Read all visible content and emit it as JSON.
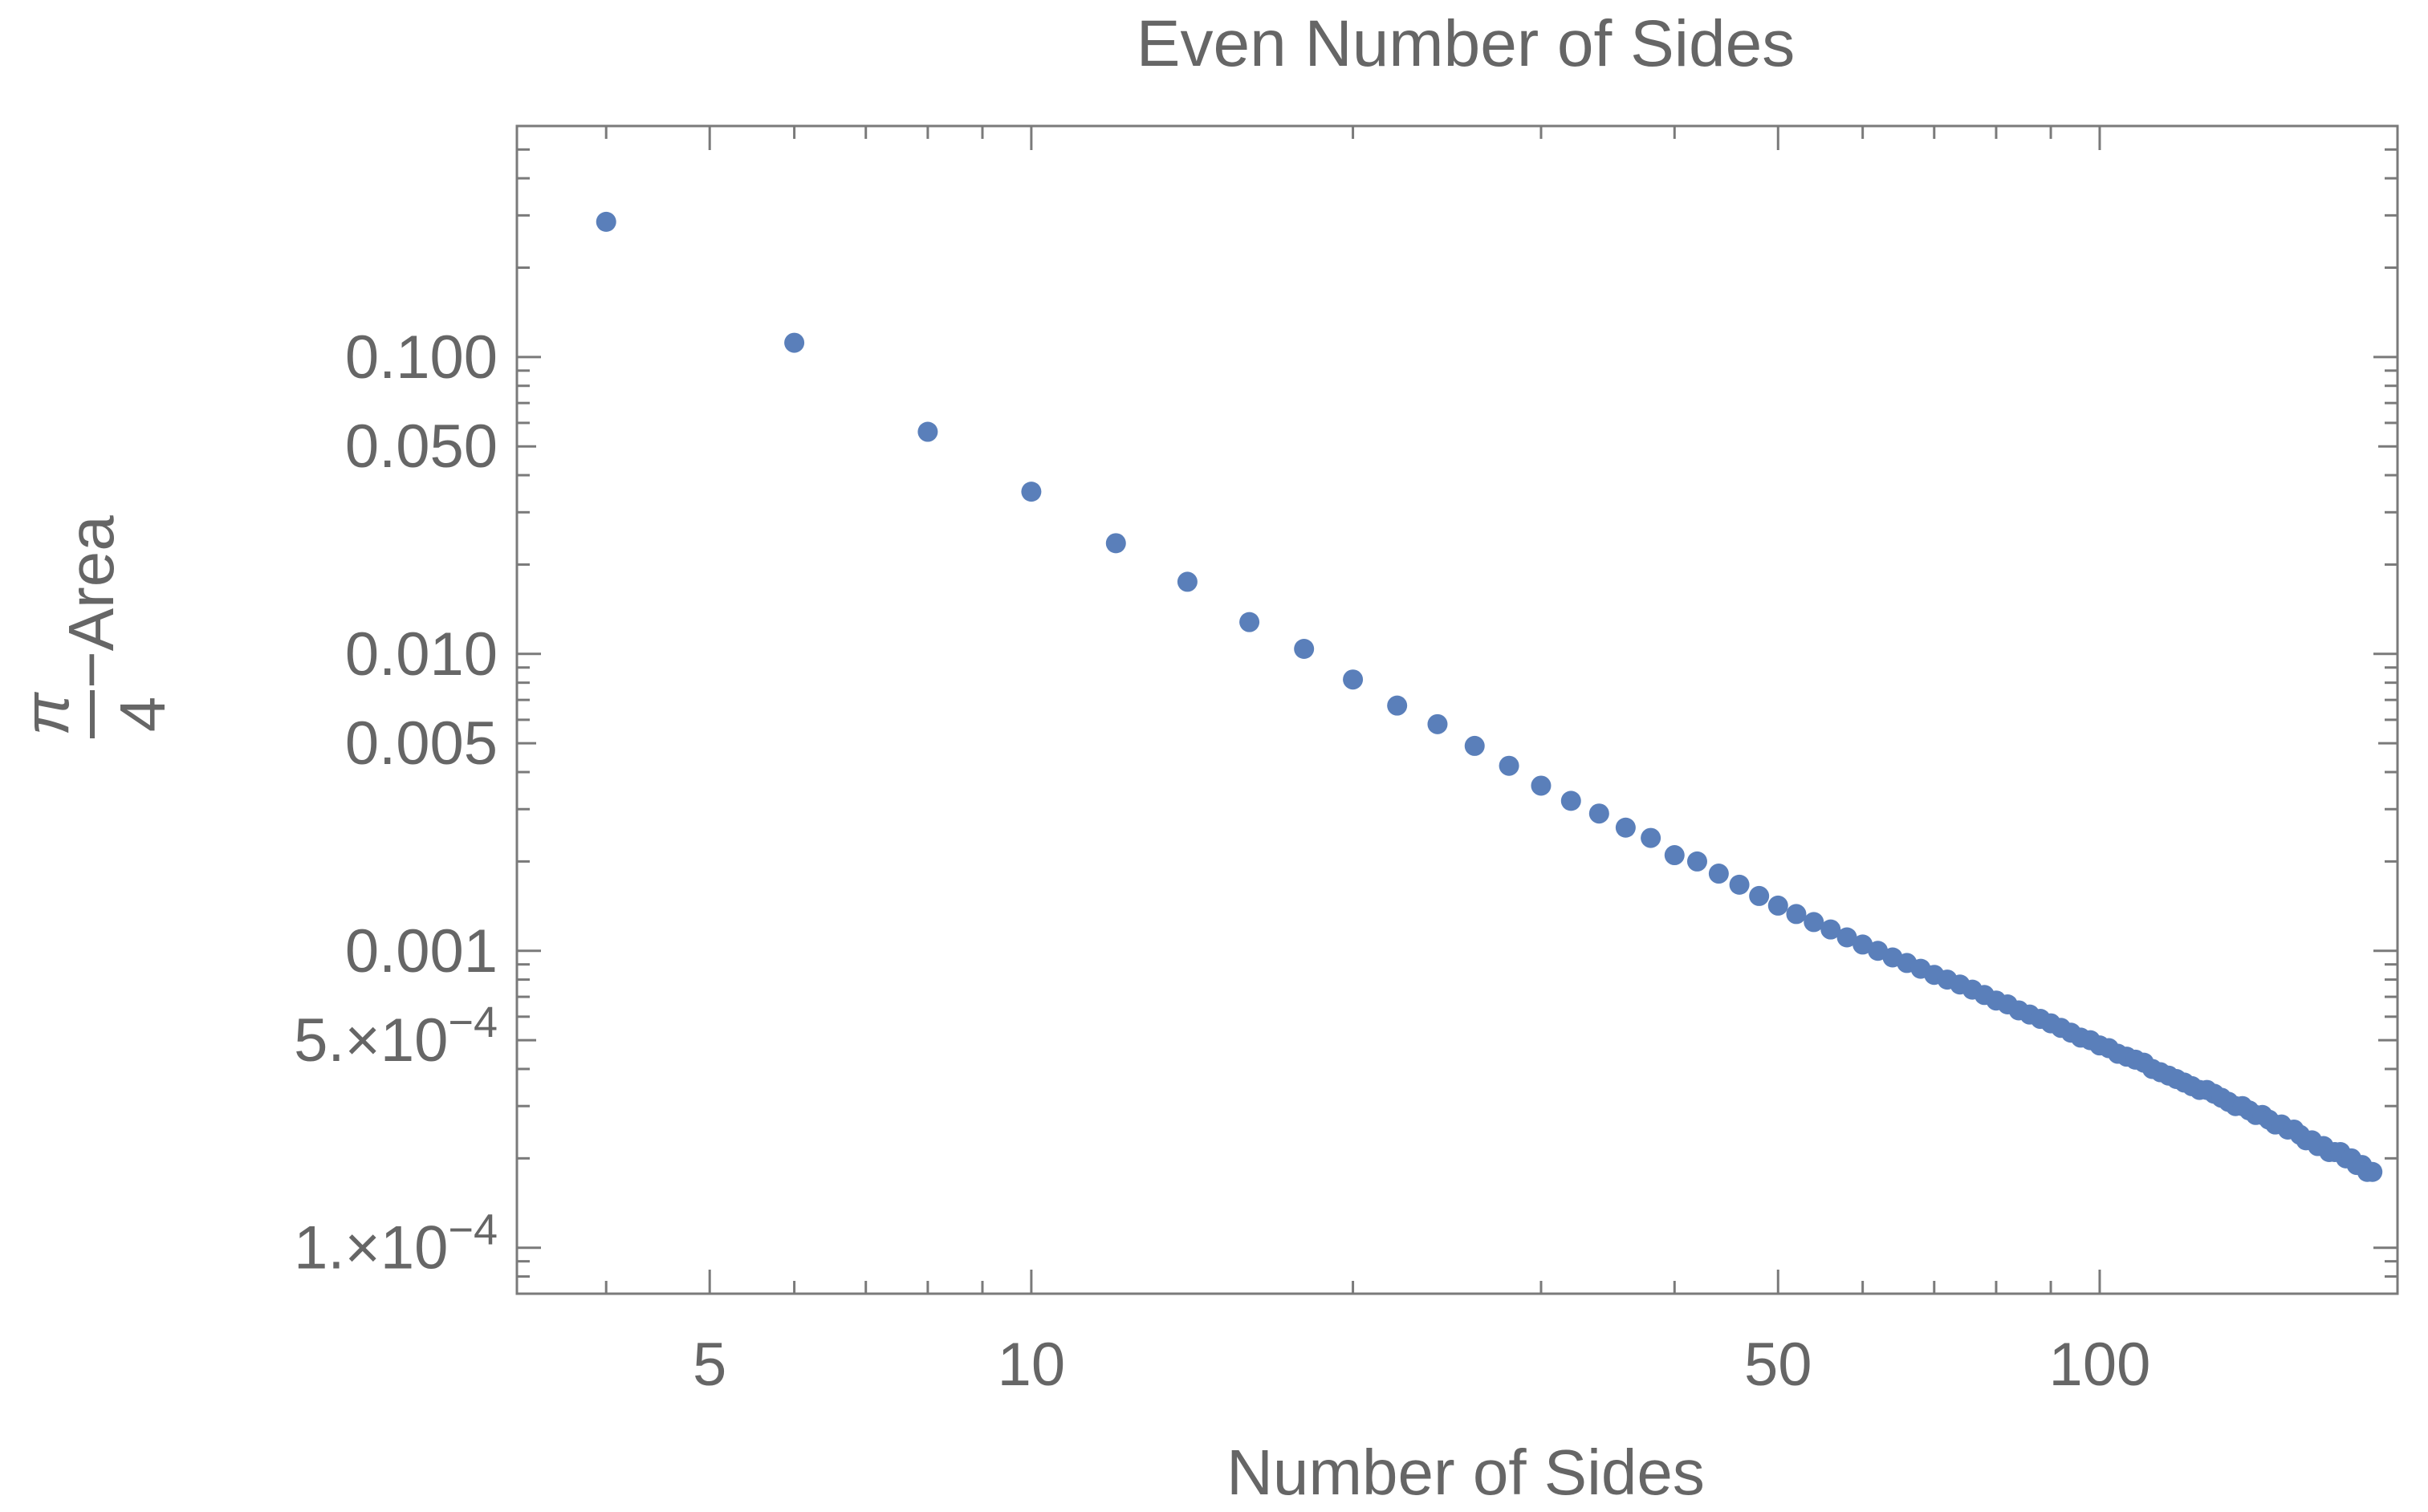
{
  "chart_data": {
    "type": "scatter",
    "title": "Even Number of Sides",
    "xlabel": "Number of Sides",
    "ylabel": {
      "numerator": "π",
      "denominator": "4",
      "suffix": "−Area"
    },
    "x_scale": "log",
    "y_scale": "log",
    "xlim": [
      3.3,
      190
    ],
    "ylim": [
      7e-05,
      0.6
    ],
    "grid": false,
    "legend": "none",
    "x_ticks": [
      {
        "value": 5,
        "label": "5"
      },
      {
        "value": 10,
        "label": "10"
      },
      {
        "value": 50,
        "label": "50"
      },
      {
        "value": 100,
        "label": "100"
      }
    ],
    "y_ticks": [
      {
        "value": 0.1,
        "label": "0.100"
      },
      {
        "value": 0.05,
        "label": "0.050"
      },
      {
        "value": 0.01,
        "label": "0.010"
      },
      {
        "value": 0.005,
        "label": "0.005"
      },
      {
        "value": 0.001,
        "label": "0.001"
      },
      {
        "value": 0.0005,
        "label": "5.×10",
        "exponent": "−4"
      },
      {
        "value": 0.0001,
        "label": "1.×10",
        "exponent": "−4"
      }
    ],
    "series": [
      {
        "color": "#5a7fba",
        "x": [
          4,
          6,
          8,
          10,
          12,
          14,
          16,
          18,
          20,
          22,
          24,
          26,
          28,
          30,
          32,
          34,
          36,
          38,
          40,
          42,
          44,
          46,
          48,
          50,
          52,
          54,
          56,
          58,
          60,
          62,
          64,
          66,
          68,
          70,
          72,
          74,
          76,
          78,
          80,
          82,
          84,
          86,
          88,
          90,
          92,
          94,
          96,
          98,
          100,
          102,
          104,
          106,
          108,
          110,
          112,
          114,
          116,
          118,
          120,
          122,
          124,
          126,
          128,
          130,
          132,
          134,
          136,
          138,
          140,
          142,
          144,
          146,
          148,
          150,
          152,
          154,
          156,
          158,
          160,
          162,
          164,
          166,
          168,
          170,
          172,
          174,
          176,
          178,
          180
        ],
        "y": [
          0.2854,
          0.1117,
          0.056,
          0.0352,
          0.0236,
          0.0175,
          0.0128,
          0.0104,
          0.0082,
          0.0067,
          0.0058,
          0.0049,
          0.0042,
          0.0036,
          0.0032,
          0.0029,
          0.0026,
          0.0024,
          0.0021,
          0.002,
          0.00182,
          0.00167,
          0.00153,
          0.00142,
          0.00133,
          0.00125,
          0.00118,
          0.00111,
          0.00105,
          0.001,
          0.00095,
          0.00091,
          0.00087,
          0.00083,
          0.0008,
          0.00077,
          0.00074,
          0.00071,
          0.00068,
          0.00066,
          0.00063,
          0.00061,
          0.00059,
          0.00057,
          0.00055,
          0.00053,
          0.00051,
          0.0005,
          0.00048,
          0.00047,
          0.00045,
          0.00044,
          0.00043,
          0.00042,
          0.0004,
          0.00039,
          0.00038,
          0.00037,
          0.00036,
          0.00035,
          0.00034,
          0.00034,
          0.00033,
          0.00032,
          0.00031,
          0.0003,
          0.0003,
          0.00029,
          0.00028,
          0.00028,
          0.00027,
          0.00026,
          0.00026,
          0.00025,
          0.00025,
          0.00024,
          0.00023,
          0.00023,
          0.00022,
          0.00022,
          0.00021,
          0.00021,
          0.00021,
          0.0002,
          0.0002,
          0.00019,
          0.00019,
          0.00018,
          0.00018
        ]
      }
    ]
  }
}
